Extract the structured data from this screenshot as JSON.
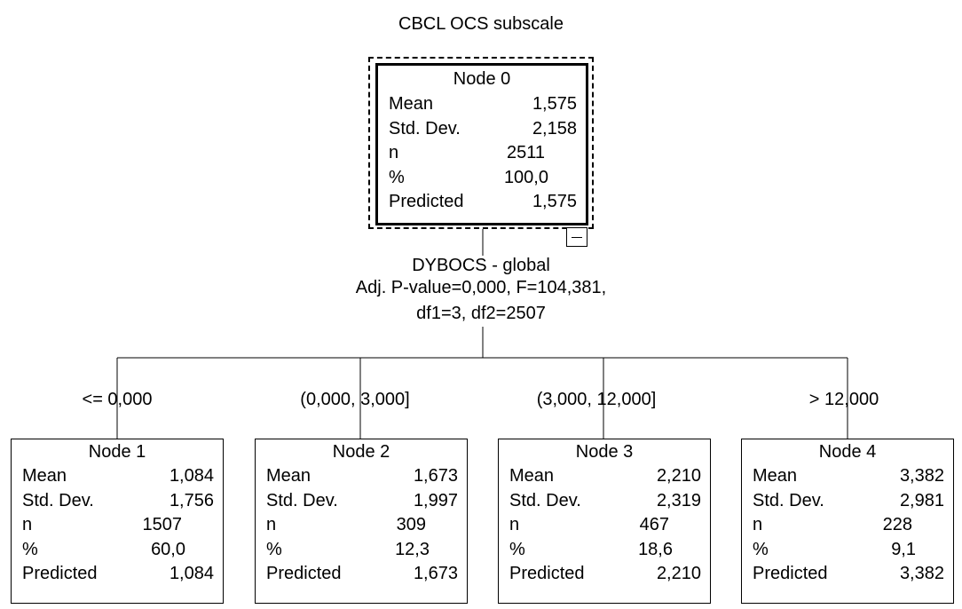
{
  "title": "CBCL OCS subscale",
  "labels": {
    "mean": "Mean",
    "sd": "Std. Dev.",
    "n": "n",
    "pct": "%",
    "pred": "Predicted"
  },
  "root": {
    "name": "Node 0",
    "mean": "1,575",
    "sd": "2,158",
    "n": "2511",
    "pct": "100,0",
    "pred": "1,575"
  },
  "split": {
    "variable": "DYBOCS - global",
    "stats1": "Adj. P-value=0,000, F=104,381,",
    "stats2": "df1=3, df2=2507"
  },
  "children": [
    {
      "edge": "<= 0,000",
      "name": "Node 1",
      "mean": "1,084",
      "sd": "1,756",
      "n": "1507",
      "pct": "60,0",
      "pred": "1,084"
    },
    {
      "edge": "(0,000, 3,000]",
      "name": "Node 2",
      "mean": "1,673",
      "sd": "1,997",
      "n": "309",
      "pct": "12,3",
      "pred": "1,673"
    },
    {
      "edge": "(3,000, 12,000]",
      "name": "Node 3",
      "mean": "2,210",
      "sd": "2,319",
      "n": "467",
      "pct": "18,6",
      "pred": "2,210"
    },
    {
      "edge": "> 12,000",
      "name": "Node 4",
      "mean": "3,382",
      "sd": "2,981",
      "n": "228",
      "pct": "9,1",
      "pred": "3,382"
    }
  ]
}
